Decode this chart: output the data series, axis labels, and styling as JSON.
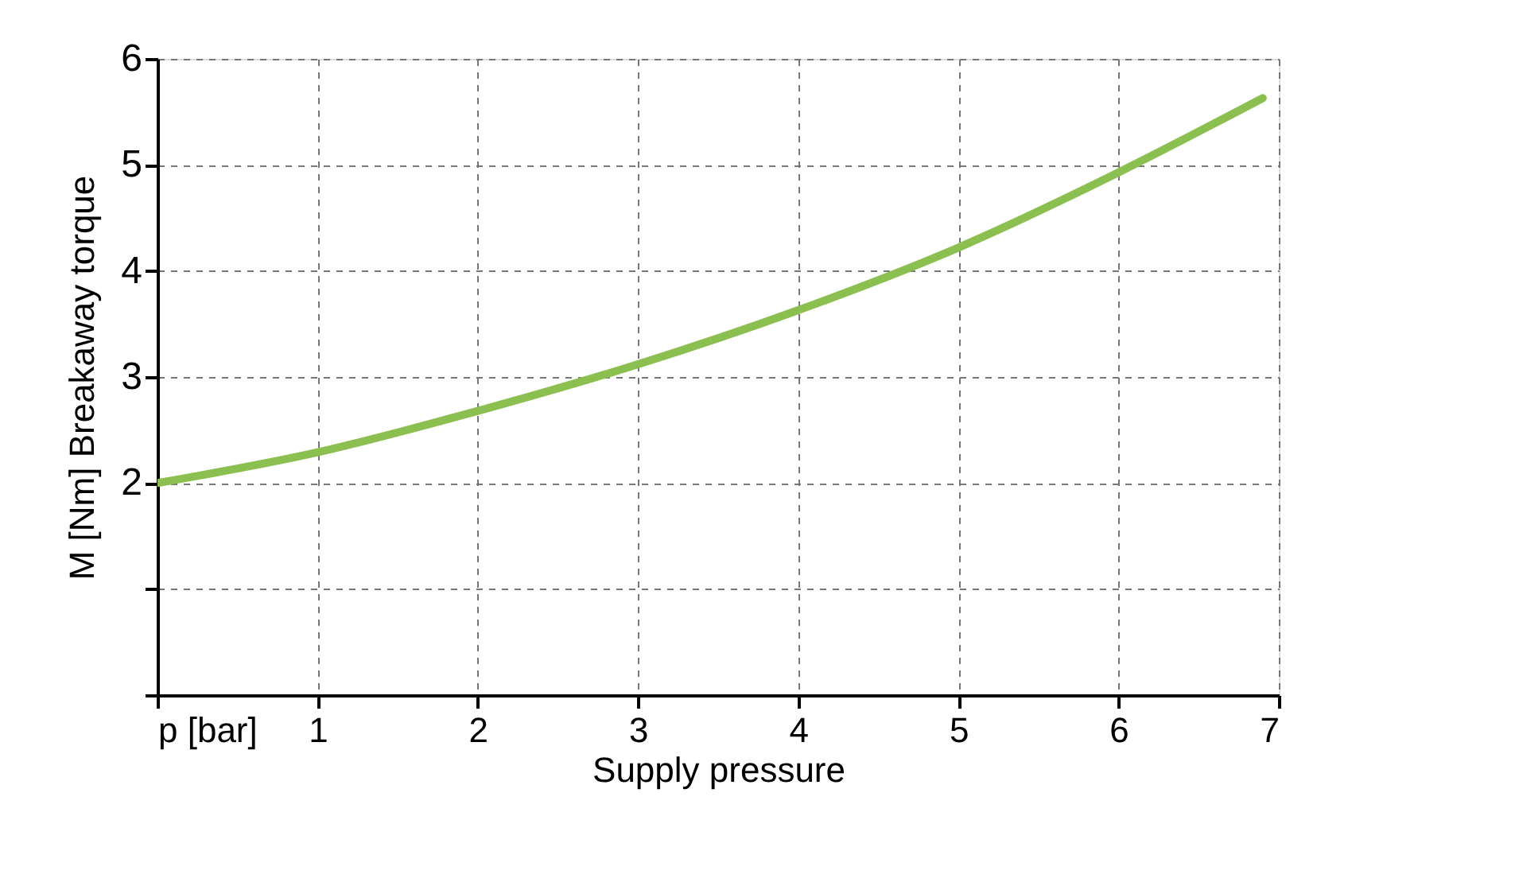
{
  "chart_data": {
    "type": "line",
    "xlabel": "Supply pressure",
    "ylabel": "M [Nm]   Breakaway torque",
    "x": [
      0,
      1,
      2,
      3,
      4,
      5,
      6,
      6.9
    ],
    "series": [
      {
        "color": "#8bbf4f",
        "values": [
          2.0,
          2.29,
          2.68,
          3.12,
          3.63,
          4.22,
          4.93,
          5.63
        ]
      }
    ],
    "xlim": [
      0,
      7
    ],
    "ylim": [
      0,
      6
    ],
    "xticks": [
      {
        "value": 0,
        "label": "p [bar]"
      },
      1,
      2,
      3,
      4,
      5,
      6,
      7
    ],
    "yticks": [
      {
        "value": 0,
        "label": null
      },
      {
        "value": 1,
        "label": null
      },
      2,
      3,
      4,
      5,
      6
    ],
    "grid": true,
    "line_style": "solid",
    "marker": "none"
  }
}
